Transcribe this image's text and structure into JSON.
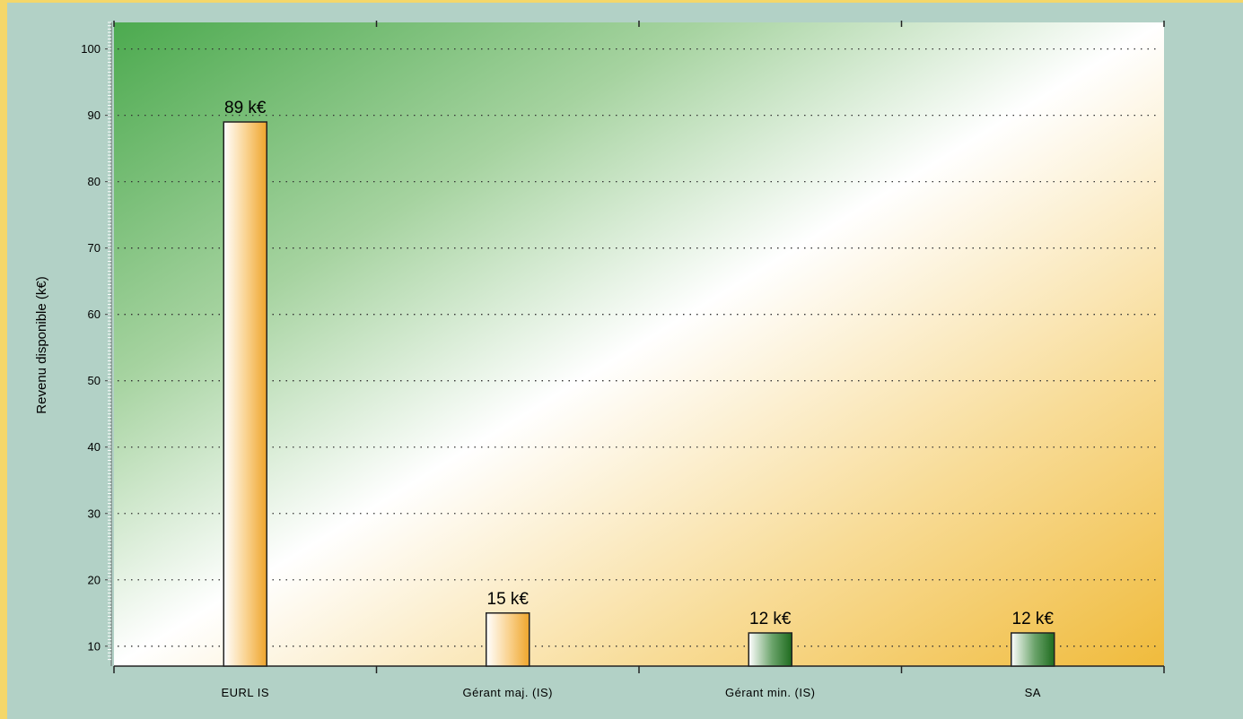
{
  "chart_data": {
    "type": "bar",
    "categories": [
      "EURL IS",
      "Gérant maj. (IS)",
      "Gérant min. (IS)",
      "SA"
    ],
    "values": [
      89,
      15,
      12,
      12
    ],
    "value_labels": [
      "89 k€",
      "15 k€",
      "12 k€",
      "12 k€"
    ],
    "ylabel": "Revenu disponible (k€)",
    "ylim": [
      7,
      104
    ],
    "yticks": [
      10,
      20,
      30,
      40,
      50,
      60,
      70,
      80,
      90,
      100
    ],
    "grid": "dotted-horizontal",
    "colors": {
      "page_background": "#b2d1c6",
      "left_accent": "#f4d76a",
      "plot_gradient_start": "#4caa4f",
      "plot_gradient_mid": "#ffffff",
      "plot_gradient_end": "#f0bb3c",
      "bar_orange_dark": "#eeaa33",
      "bar_green_dark": "#1e6b1e"
    },
    "bar_styles": [
      "orange",
      "orange",
      "green",
      "green"
    ]
  }
}
